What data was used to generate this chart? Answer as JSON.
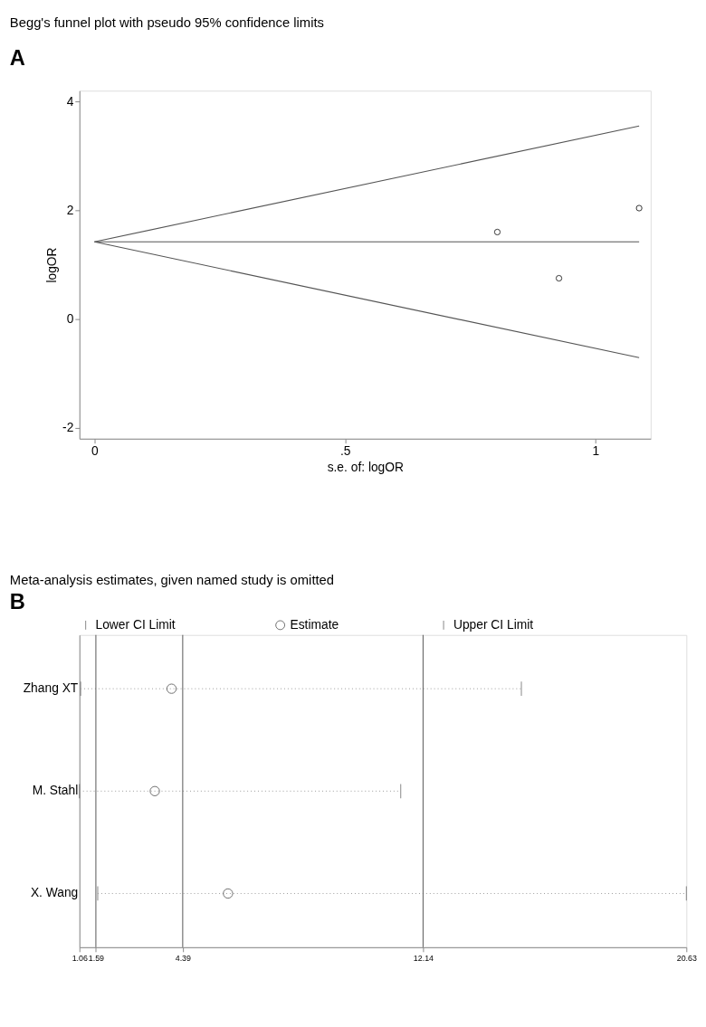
{
  "chart_data": [
    {
      "type": "scatter",
      "title": "Begg's funnel plot with pseudo 95% confidence limits",
      "annotations": [
        "A"
      ],
      "xlabel": "s.e. of: logOR",
      "ylabel": "logOR",
      "xlim": [
        -0.03,
        1.11
      ],
      "ylim": [
        -2.2,
        4.2
      ],
      "xticks": [
        0,
        {
          "value": 0.5,
          "label": ".5"
        },
        1
      ],
      "yticks": [
        -2,
        0,
        2,
        4
      ],
      "grid": false,
      "legend": false,
      "marker": "circle",
      "series": [
        {
          "type": "scatter",
          "color": "#333333",
          "x": [
            0.804,
            0.927,
            1.087
          ],
          "values": [
            1.6,
            0.75,
            2.04
          ]
        },
        {
          "type": "line",
          "color": "#555555",
          "line_style": "solid",
          "marker": "none",
          "x": [
            0,
            1.087
          ],
          "values": [
            1.42,
            3.55
          ]
        },
        {
          "type": "line",
          "color": "#555555",
          "line_style": "solid",
          "marker": "none",
          "x": [
            0,
            1.087
          ],
          "values": [
            1.42,
            1.42
          ]
        },
        {
          "type": "line",
          "color": "#555555",
          "line_style": "solid",
          "marker": "none",
          "x": [
            0,
            1.087
          ],
          "values": [
            1.42,
            -0.71
          ]
        }
      ]
    },
    {
      "type": "scatter",
      "orientation": "horizontal",
      "title": "Meta-analysis estimates, given named study is omitted",
      "annotations": [
        "B",
        "Lower CI Limit",
        "Upper CI Limit"
      ],
      "categories": [
        "Zhang XT",
        "M. Stahl",
        "X. Wang"
      ],
      "xlim": [
        1.06,
        20.63
      ],
      "xticks": [
        1.06,
        1.59,
        4.39,
        12.14,
        20.63
      ],
      "grid": false,
      "legend": "top left",
      "line_style": "dotted",
      "series": [
        {
          "name": "Estimate",
          "marker": "circle",
          "color": "#333333",
          "values": [
            4.03,
            3.49,
            5.85
          ],
          "errors": [
            [
              1.1,
              15.31
            ],
            [
              1.06,
              11.42
            ],
            [
              1.65,
              20.63
            ]
          ]
        }
      ],
      "ref_lines": [
        {
          "axis": "x",
          "value": 1.59,
          "color": "#555555"
        },
        {
          "axis": "x",
          "value": 4.39,
          "color": "#555555"
        },
        {
          "axis": "x",
          "value": 12.14,
          "color": "#555555"
        }
      ]
    }
  ]
}
